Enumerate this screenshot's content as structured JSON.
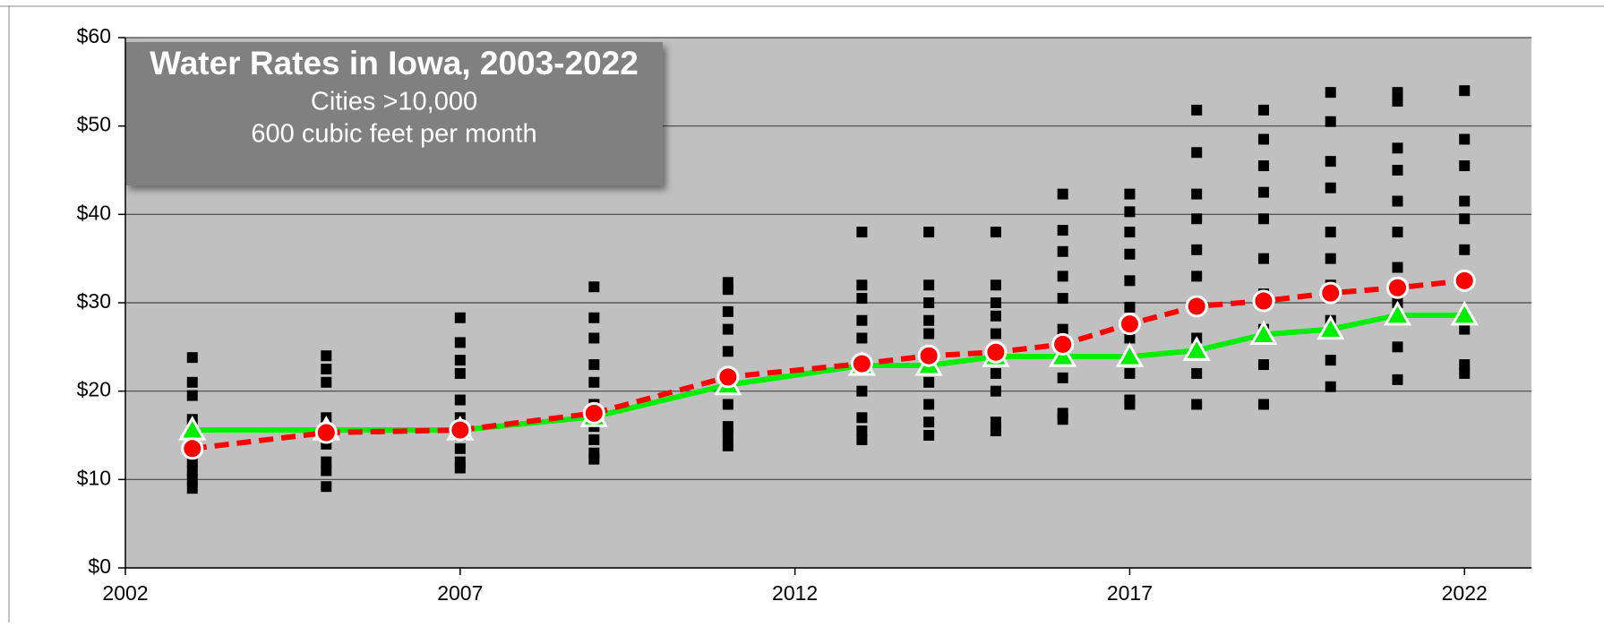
{
  "chart_data": {
    "type": "line",
    "title": "Water Rates in Iowa, 2003-2022",
    "subtitle": [
      "Cities >10,000",
      "600 cubic feet per month"
    ],
    "x": [
      2003,
      2005,
      2007,
      2009,
      2011,
      2013,
      2014,
      2015,
      2016,
      2017,
      2018,
      2019,
      2020,
      2021,
      2022
    ],
    "xlim": [
      2002,
      2023
    ],
    "xticks": [
      2002,
      2007,
      2012,
      2017,
      2022
    ],
    "ylim": [
      0,
      60
    ],
    "yticks": [
      {
        "value": 0,
        "label": "$0"
      },
      {
        "value": 10,
        "label": "$10"
      },
      {
        "value": 20,
        "label": "$20"
      },
      {
        "value": 30,
        "label": "$30"
      },
      {
        "value": 40,
        "label": "$40"
      },
      {
        "value": 50,
        "label": "$50"
      },
      {
        "value": 60,
        "label": "$60"
      }
    ],
    "grid": true,
    "series": [
      {
        "type": "scatter",
        "color": "#000000",
        "x": [
          2003,
          2003,
          2003,
          2003,
          2003,
          2003,
          2003,
          2003,
          2003,
          2003,
          2005,
          2005,
          2005,
          2005,
          2005,
          2005,
          2005,
          2005,
          2005,
          2007,
          2007,
          2007,
          2007,
          2007,
          2007,
          2007,
          2007,
          2007,
          2007,
          2009,
          2009,
          2009,
          2009,
          2009,
          2009,
          2009,
          2009,
          2009,
          2009,
          2011,
          2011,
          2011,
          2011,
          2011,
          2011,
          2011,
          2011,
          2011,
          2011,
          2013,
          2013,
          2013,
          2013,
          2013,
          2013,
          2013,
          2013,
          2013,
          2013,
          2014,
          2014,
          2014,
          2014,
          2014,
          2014,
          2014,
          2014,
          2014,
          2014,
          2015,
          2015,
          2015,
          2015,
          2015,
          2015,
          2015,
          2015,
          2015,
          2015,
          2016,
          2016,
          2016,
          2016,
          2016,
          2016,
          2016,
          2016,
          2016,
          2016,
          2017,
          2017,
          2017,
          2017,
          2017,
          2017,
          2017,
          2017,
          2017,
          2017,
          2018,
          2018,
          2018,
          2018,
          2018,
          2018,
          2018,
          2018,
          2018,
          2018,
          2019,
          2019,
          2019,
          2019,
          2019,
          2019,
          2019,
          2019,
          2019,
          2019,
          2020,
          2020,
          2020,
          2020,
          2020,
          2020,
          2020,
          2020,
          2020,
          2020,
          2021,
          2021,
          2021,
          2021,
          2021,
          2021,
          2021,
          2021,
          2021,
          2021,
          2022,
          2022,
          2022,
          2022,
          2022,
          2022,
          2022,
          2022,
          2022,
          2022
        ],
        "values": [
          23.8,
          21,
          19.5,
          16.8,
          15,
          13,
          12,
          11,
          10,
          9,
          24,
          22.5,
          21,
          17,
          15.5,
          14,
          12,
          11,
          9.2,
          28.3,
          25.5,
          23.5,
          22,
          19,
          17,
          15,
          13.5,
          12,
          11.3,
          31.8,
          28.3,
          26,
          23,
          21,
          18.5,
          16,
          14.5,
          13,
          12.3,
          32.3,
          31.5,
          29,
          27,
          24.5,
          22,
          18.5,
          16,
          15,
          13.8,
          38,
          32,
          30.5,
          28,
          26,
          23,
          20,
          17,
          15.5,
          14.5,
          38,
          32,
          30,
          28,
          26.5,
          24,
          21,
          18.5,
          16.5,
          15,
          38,
          32,
          30,
          28.5,
          26.5,
          24.5,
          22,
          20,
          16.5,
          15.5,
          42.3,
          38.2,
          35.8,
          33,
          30.5,
          27,
          24,
          21.5,
          17.5,
          16.8,
          42.3,
          40.3,
          38,
          35.5,
          32.5,
          29.5,
          26,
          22,
          19,
          18.5,
          51.8,
          47,
          42.3,
          39.5,
          36,
          33,
          30,
          26,
          22,
          18.5,
          51.8,
          48.5,
          45.5,
          42.5,
          39.5,
          35,
          31,
          27,
          23,
          18.5,
          53.8,
          50.5,
          46,
          43,
          38,
          35,
          32,
          28,
          23.5,
          20.5,
          53.8,
          52.8,
          47.5,
          45,
          41.5,
          38,
          34,
          30,
          25,
          21.3,
          54,
          48.5,
          45.5,
          41.5,
          39.5,
          36,
          32,
          27,
          23,
          22
        ]
      },
      {
        "type": "line",
        "color": "#00ee00",
        "marker": "triangle",
        "values": [
          15.6,
          15.6,
          15.6,
          17.1,
          20.7,
          22.9,
          22.9,
          23.9,
          23.9,
          23.9,
          24.6,
          26.4,
          27.0,
          28.6,
          28.6
        ]
      },
      {
        "type": "line",
        "color": "#ff0000",
        "marker": "circle",
        "dashed": true,
        "values": [
          13.5,
          15.3,
          15.6,
          17.5,
          21.6,
          23.1,
          24.0,
          24.4,
          25.3,
          27.6,
          29.6,
          30.2,
          31.1,
          31.7,
          32.5
        ]
      }
    ]
  }
}
